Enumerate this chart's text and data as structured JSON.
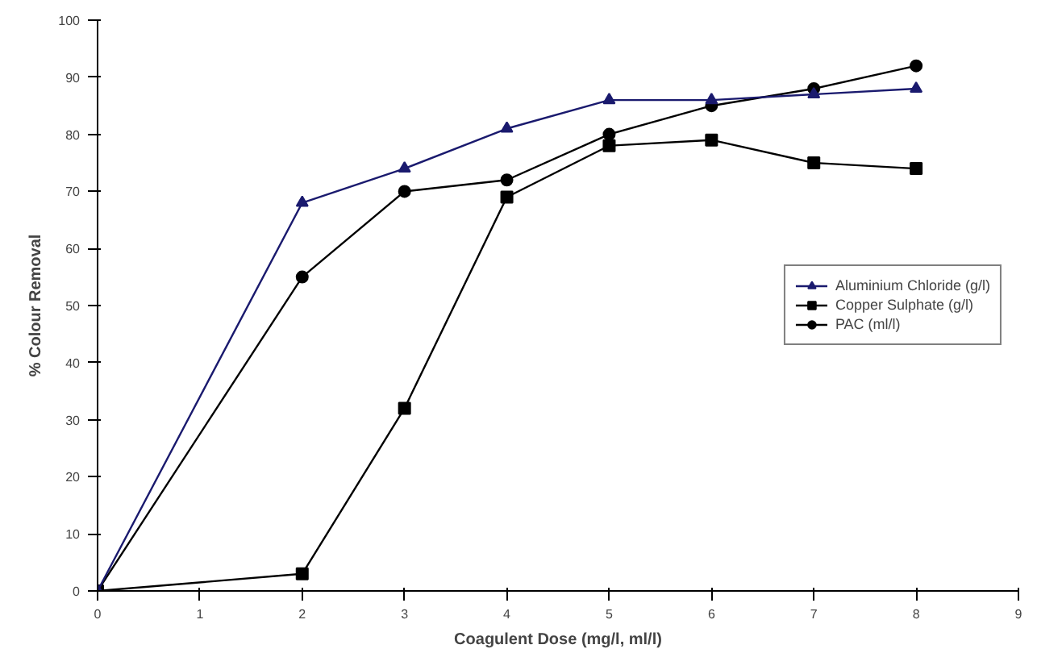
{
  "chart_data": {
    "type": "line",
    "xlabel": "Coagulent Dose (mg/l, ml/l)",
    "ylabel": "% Colour Removal",
    "x": [
      0,
      2,
      3,
      4,
      5,
      6,
      7,
      8
    ],
    "series": [
      {
        "name": "Aluminium Chloride (g/l)",
        "color": "#1a1a6e",
        "marker": "triangle",
        "values": [
          0,
          68,
          74,
          81,
          86,
          86,
          87,
          88
        ]
      },
      {
        "name": "Copper Sulphate (g/l)",
        "color": "#000000",
        "marker": "square",
        "values": [
          0,
          3,
          32,
          69,
          78,
          79,
          75,
          74
        ]
      },
      {
        "name": "PAC (ml/l)",
        "color": "#000000",
        "marker": "circle",
        "values": [
          0,
          55,
          70,
          72,
          80,
          85,
          88,
          92
        ]
      }
    ],
    "xlim": [
      0,
      9
    ],
    "ylim": [
      0,
      100
    ],
    "xticks": [
      0,
      1,
      2,
      3,
      4,
      5,
      6,
      7,
      8,
      9
    ],
    "yticks": [
      0,
      10,
      20,
      30,
      40,
      50,
      60,
      70,
      80,
      90,
      100
    ],
    "grid": false,
    "legend": "right",
    "line_style": "solid"
  }
}
